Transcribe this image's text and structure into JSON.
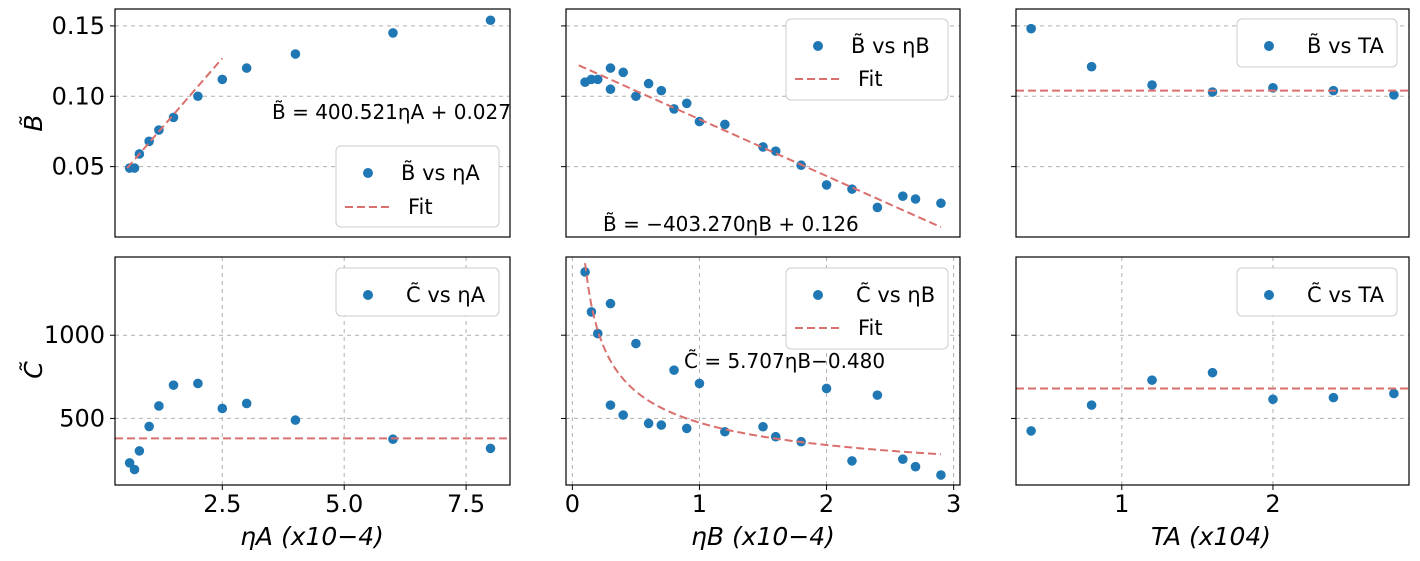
{
  "chart_data": [
    {
      "id": "p00",
      "type": "scatter",
      "xlim": [
        0.3,
        8.4
      ],
      "ylim": [
        0.0,
        0.162
      ],
      "xticks": [],
      "yticks": [
        0.05,
        0.1,
        0.15
      ],
      "ytick_labels": [
        "0.05",
        "0.10",
        "0.15"
      ],
      "grid": true,
      "ylabel": "B̃",
      "series": [
        {
          "name": "B̃ vs ηA",
          "type": "scatter",
          "x": [
            0.6,
            0.7,
            0.8,
            1.0,
            1.2,
            1.5,
            2.0,
            2.5,
            3.0,
            4.0,
            6.0,
            8.0
          ],
          "y": [
            0.049,
            0.049,
            0.059,
            0.068,
            0.076,
            0.085,
            0.1,
            0.112,
            0.12,
            0.13,
            0.145,
            0.154
          ]
        },
        {
          "name": "Fit",
          "type": "line",
          "x": [
            0.55,
            2.5
          ],
          "y": [
            0.049,
            0.127
          ]
        }
      ],
      "legend": {
        "position": "lower-right",
        "entries": [
          "B̃ vs ηA",
          "Fit"
        ]
      },
      "annotation": "B̃ = 400.521ηA + 0.027"
    },
    {
      "id": "p01",
      "type": "scatter",
      "xlim": [
        -0.05,
        3.05
      ],
      "ylim": [
        0.0,
        0.162
      ],
      "xticks": [],
      "yticks": [
        0.05,
        0.1,
        0.15
      ],
      "ytick_labels": [],
      "grid": true,
      "series": [
        {
          "name": "B̃ vs ηB",
          "type": "scatter",
          "x": [
            0.1,
            0.15,
            0.2,
            0.3,
            0.3,
            0.4,
            0.5,
            0.6,
            0.7,
            0.8,
            0.9,
            1.0,
            1.2,
            1.5,
            1.6,
            1.8,
            2.0,
            2.2,
            2.4,
            2.6,
            2.7,
            2.9
          ],
          "y": [
            0.11,
            0.112,
            0.112,
            0.12,
            0.105,
            0.117,
            0.1,
            0.109,
            0.104,
            0.091,
            0.095,
            0.082,
            0.08,
            0.064,
            0.061,
            0.051,
            0.037,
            0.034,
            0.021,
            0.029,
            0.027,
            0.024
          ]
        },
        {
          "name": "Fit",
          "type": "line",
          "x": [
            0.05,
            2.9
          ],
          "y": [
            0.122,
            0.007
          ]
        }
      ],
      "legend": {
        "position": "top-right",
        "entries": [
          "B̃ vs ηB",
          "Fit"
        ]
      },
      "annotation": "B̃ = −403.270ηB + 0.126"
    },
    {
      "id": "p02",
      "type": "scatter",
      "xlim": [
        0.3,
        2.9
      ],
      "ylim": [
        0.0,
        0.162
      ],
      "xticks": [],
      "yticks": [
        0.05,
        0.1,
        0.15
      ],
      "ytick_labels": [],
      "grid": true,
      "series": [
        {
          "name": "B̃ vs TA",
          "type": "scatter",
          "x": [
            0.4,
            0.8,
            1.2,
            1.6,
            2.0,
            2.4,
            2.8
          ],
          "y": [
            0.148,
            0.121,
            0.108,
            0.103,
            0.106,
            0.104,
            0.101
          ]
        },
        {
          "name": "",
          "type": "hline",
          "y": 0.104
        }
      ],
      "legend": {
        "position": "top-right",
        "entries": [
          "B̃ vs TA"
        ]
      }
    },
    {
      "id": "p10",
      "type": "scatter",
      "xlim": [
        0.3,
        8.4
      ],
      "ylim": [
        100,
        1470
      ],
      "xticks": [
        2.5,
        5.0,
        7.5
      ],
      "xtick_labels": [
        "2.5",
        "5.0",
        "7.5"
      ],
      "yticks": [
        500,
        1000
      ],
      "ytick_labels": [
        "500",
        "1000"
      ],
      "grid": true,
      "xlabel": "ηA (x10−4)",
      "ylabel": "C̃",
      "series": [
        {
          "name": "C̃ vs ηA",
          "type": "scatter",
          "x": [
            0.6,
            0.7,
            0.8,
            1.0,
            1.2,
            1.5,
            2.0,
            2.5,
            3.0,
            4.0,
            6.0,
            8.0
          ],
          "y": [
            233,
            193,
            305,
            452,
            575,
            700,
            710,
            560,
            590,
            490,
            375,
            320
          ]
        },
        {
          "name": "",
          "type": "hline",
          "y": 380
        }
      ],
      "legend": {
        "position": "top-right",
        "entries": [
          "C̃ vs ηA"
        ]
      }
    },
    {
      "id": "p11",
      "type": "scatter",
      "xlim": [
        -0.05,
        3.05
      ],
      "ylim": [
        100,
        1470
      ],
      "xticks": [
        0,
        1,
        2,
        3
      ],
      "xtick_labels": [
        "0",
        "1",
        "2",
        "3"
      ],
      "yticks": [
        500,
        1000
      ],
      "ytick_labels": [],
      "grid": true,
      "xlabel": "ηB (x10−4)",
      "series": [
        {
          "name": "C̃ vs ηB",
          "type": "scatter",
          "x": [
            0.1,
            0.15,
            0.2,
            0.3,
            0.3,
            0.4,
            0.5,
            0.6,
            0.7,
            0.8,
            0.9,
            1.0,
            1.2,
            1.5,
            1.6,
            1.8,
            2.0,
            2.2,
            2.4,
            2.6,
            2.7,
            2.9
          ],
          "y": [
            1380,
            1140,
            1010,
            1190,
            580,
            520,
            950,
            470,
            460,
            790,
            440,
            710,
            420,
            450,
            390,
            360,
            680,
            245,
            640,
            255,
            210,
            160
          ]
        },
        {
          "name": "Fit",
          "type": "curve",
          "model": "power",
          "a": 5.707,
          "b": -0.48,
          "x_range": [
            0.1,
            2.9
          ]
        }
      ],
      "legend": {
        "position": "top-right",
        "entries": [
          "C̃ vs ηB",
          "Fit"
        ]
      },
      "annotation": "C̃ = 5.707ηB−0.480"
    },
    {
      "id": "p12",
      "type": "scatter",
      "xlim": [
        0.3,
        2.9
      ],
      "ylim": [
        100,
        1470
      ],
      "xticks": [
        1,
        2
      ],
      "xtick_labels": [
        "1",
        "2"
      ],
      "yticks": [
        500,
        1000
      ],
      "ytick_labels": [],
      "grid": true,
      "xlabel": "TA (x104)",
      "series": [
        {
          "name": "C̃ vs TA",
          "type": "scatter",
          "x": [
            0.4,
            0.8,
            1.2,
            1.6,
            2.0,
            2.4,
            2.8
          ],
          "y": [
            425,
            580,
            730,
            775,
            615,
            625,
            650
          ]
        },
        {
          "name": "",
          "type": "hline",
          "y": 680
        }
      ],
      "legend": {
        "position": "top-right",
        "entries": [
          "C̃ vs TA"
        ]
      }
    }
  ],
  "colors": {
    "points": "#1f77b4",
    "fit": "#d9706e",
    "grid": "#b0b0b0"
  },
  "labels": {
    "row0_ylabel": "B̃",
    "row1_ylabel": "C̃",
    "p00_legend_1": "B̃ vs ηA",
    "p00_legend_2": "Fit",
    "p01_legend_1": "B̃ vs ηB",
    "p01_legend_2": "Fit",
    "p02_legend_1": "B̃ vs TA",
    "p10_legend_1": "C̃ vs ηA",
    "p11_legend_1": "C̃ vs ηB",
    "p11_legend_2": "Fit",
    "p12_legend_1": "C̃ vs TA",
    "p00_annot": "B̃ = 400.521ηA + 0.027",
    "p01_annot": "B̃ = −403.270ηB + 0.126",
    "p11_annot": "C̃ = 5.707ηB−0.480",
    "xlabel_0": "ηA (x10−4)",
    "xlabel_1": "ηB (x10−4)",
    "xlabel_2": "TA (x104)"
  }
}
